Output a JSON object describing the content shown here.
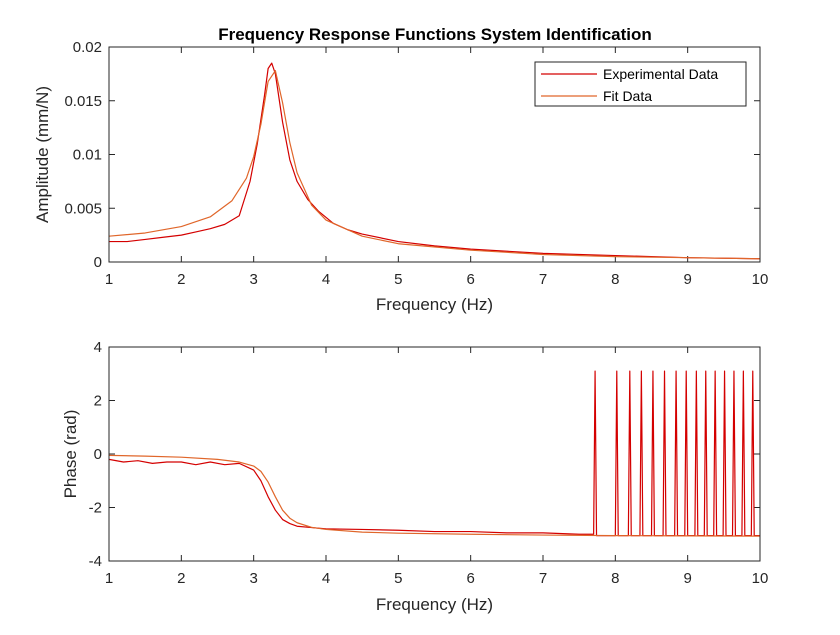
{
  "figure": {
    "title": "Frequency Response Functions System Identification"
  },
  "colors": {
    "experimental": "#d40000",
    "fit": "#e0662a",
    "axis": "#262626"
  },
  "chart_data": [
    {
      "type": "line",
      "title": "Frequency Response Functions System Identification",
      "xlabel": "Frequency (Hz)",
      "ylabel": "Amplitude (mm/N)",
      "xlim": [
        1,
        10
      ],
      "ylim": [
        0,
        0.02
      ],
      "xticks": [
        "1",
        "2",
        "3",
        "4",
        "5",
        "6",
        "7",
        "8",
        "9",
        "10"
      ],
      "yticks": [
        "0",
        "0.005",
        "0.01",
        "0.015",
        "0.02"
      ],
      "grid": false,
      "legend": "top-right",
      "series": [
        {
          "name": "Experimental Data",
          "color": "#d40000",
          "x": [
            1.0,
            1.25,
            1.5,
            1.75,
            2.0,
            2.2,
            2.4,
            2.6,
            2.8,
            2.95,
            3.05,
            3.15,
            3.2,
            3.25,
            3.3,
            3.4,
            3.5,
            3.6,
            3.75,
            3.9,
            4.1,
            4.3,
            4.5,
            5.0,
            5.5,
            6.0,
            6.5,
            7.0,
            8.0,
            9.0,
            10.0
          ],
          "y": [
            0.0019,
            0.0019,
            0.0021,
            0.0023,
            0.0025,
            0.0028,
            0.0031,
            0.0035,
            0.0043,
            0.0075,
            0.011,
            0.0155,
            0.018,
            0.0185,
            0.0175,
            0.013,
            0.0095,
            0.0075,
            0.0058,
            0.0047,
            0.0036,
            0.003,
            0.0026,
            0.0019,
            0.0015,
            0.0012,
            0.001,
            0.0008,
            0.0006,
            0.0004,
            0.0003
          ]
        },
        {
          "name": "Fit Data",
          "color": "#e0662a",
          "x": [
            1.0,
            1.5,
            2.0,
            2.4,
            2.7,
            2.9,
            3.0,
            3.1,
            3.2,
            3.3,
            3.4,
            3.5,
            3.6,
            3.8,
            4.0,
            4.5,
            5.0,
            6.0,
            7.0,
            8.0,
            9.0,
            10.0
          ],
          "y": [
            0.0024,
            0.0027,
            0.0033,
            0.0042,
            0.0057,
            0.0078,
            0.0098,
            0.0128,
            0.0168,
            0.0178,
            0.0148,
            0.0111,
            0.0083,
            0.0053,
            0.0039,
            0.0024,
            0.0017,
            0.0011,
            0.0007,
            0.0005,
            0.0004,
            0.0003
          ]
        }
      ]
    },
    {
      "type": "line",
      "title": "",
      "xlabel": "Frequency (Hz)",
      "ylabel": "Phase (rad)",
      "xlim": [
        1,
        10
      ],
      "ylim": [
        -4,
        4
      ],
      "xticks": [
        "1",
        "2",
        "3",
        "4",
        "5",
        "6",
        "7",
        "8",
        "9",
        "10"
      ],
      "yticks": [
        "-4",
        "-2",
        "0",
        "2",
        "4"
      ],
      "grid": false,
      "series": [
        {
          "name": "Experimental Data",
          "color": "#d40000",
          "x": [
            1.0,
            1.2,
            1.4,
            1.6,
            1.8,
            2.0,
            2.2,
            2.4,
            2.6,
            2.8,
            3.0,
            3.1,
            3.2,
            3.3,
            3.4,
            3.5,
            3.6,
            3.8,
            4.0,
            4.5,
            5.0,
            5.5,
            6.0,
            6.5,
            7.0,
            7.5,
            7.7,
            7.72,
            7.74,
            7.76,
            7.78,
            7.8,
            8.0,
            8.02,
            8.04,
            8.06,
            8.08,
            8.1,
            8.18,
            8.2,
            8.22,
            8.24,
            8.26,
            8.28,
            8.34,
            8.36,
            8.38,
            8.4,
            8.42,
            8.44,
            8.5,
            8.52,
            8.54,
            8.56,
            8.58,
            8.6,
            8.66,
            8.68,
            8.7,
            8.72,
            8.74,
            8.76,
            8.82,
            8.84,
            8.86,
            8.88,
            8.9,
            8.92,
            8.96,
            8.98,
            9.0,
            9.02,
            9.04,
            9.06,
            9.1,
            9.12,
            9.14,
            9.16,
            9.18,
            9.2,
            9.23,
            9.25,
            9.27,
            9.29,
            9.31,
            9.33,
            9.36,
            9.38,
            9.4,
            9.42,
            9.44,
            9.46,
            9.49,
            9.51,
            9.53,
            9.55,
            9.57,
            9.59,
            9.62,
            9.64,
            9.66,
            9.68,
            9.7,
            9.72,
            9.75,
            9.77,
            9.79,
            9.81,
            9.83,
            9.85,
            9.88,
            9.9,
            9.92,
            9.94,
            9.96,
            9.98,
            10.0
          ],
          "y": [
            -0.2,
            -0.3,
            -0.25,
            -0.35,
            -0.3,
            -0.3,
            -0.4,
            -0.3,
            -0.4,
            -0.35,
            -0.6,
            -1.0,
            -1.6,
            -2.1,
            -2.45,
            -2.6,
            -2.7,
            -2.75,
            -2.8,
            -2.82,
            -2.85,
            -2.9,
            -2.9,
            -2.95,
            -2.95,
            -3.0,
            -3.0,
            3.1,
            -3.05,
            -3.05,
            -3.05,
            -3.05,
            -3.05,
            3.1,
            -3.05,
            -3.05,
            -3.05,
            -3.05,
            -3.05,
            3.1,
            -3.05,
            -3.05,
            -3.05,
            -3.05,
            -3.05,
            3.1,
            -3.05,
            -3.05,
            -3.05,
            -3.05,
            -3.05,
            3.1,
            -3.05,
            -3.05,
            -3.05,
            -3.05,
            -3.05,
            3.1,
            -3.05,
            -3.05,
            -3.05,
            -3.05,
            -3.05,
            3.1,
            -3.05,
            -3.05,
            -3.05,
            -3.05,
            -3.05,
            3.1,
            -3.05,
            -3.05,
            -3.05,
            -3.05,
            -3.05,
            3.1,
            -3.05,
            -3.05,
            -3.05,
            -3.05,
            -3.05,
            3.1,
            -3.05,
            -3.05,
            -3.05,
            -3.05,
            -3.05,
            3.1,
            -3.05,
            -3.05,
            -3.05,
            -3.05,
            -3.05,
            3.1,
            -3.05,
            -3.05,
            -3.05,
            -3.05,
            -3.05,
            3.1,
            -3.05,
            -3.05,
            -3.05,
            -3.05,
            -3.05,
            3.1,
            -3.05,
            -3.05,
            -3.05,
            -3.05,
            -3.05,
            3.1,
            -3.05,
            -3.05,
            -3.05,
            -3.05,
            -3.05
          ]
        },
        {
          "name": "Fit Data",
          "color": "#e0662a",
          "x": [
            1.0,
            1.5,
            2.0,
            2.5,
            2.8,
            3.0,
            3.1,
            3.2,
            3.3,
            3.4,
            3.5,
            3.6,
            3.8,
            4.0,
            4.5,
            5.0,
            6.0,
            7.0,
            8.0,
            9.0,
            10.0
          ],
          "y": [
            -0.05,
            -0.08,
            -0.12,
            -0.2,
            -0.3,
            -0.45,
            -0.65,
            -1.05,
            -1.6,
            -2.1,
            -2.4,
            -2.57,
            -2.74,
            -2.82,
            -2.92,
            -2.96,
            -3.0,
            -3.03,
            -3.05,
            -3.06,
            -3.07
          ]
        }
      ]
    }
  ]
}
